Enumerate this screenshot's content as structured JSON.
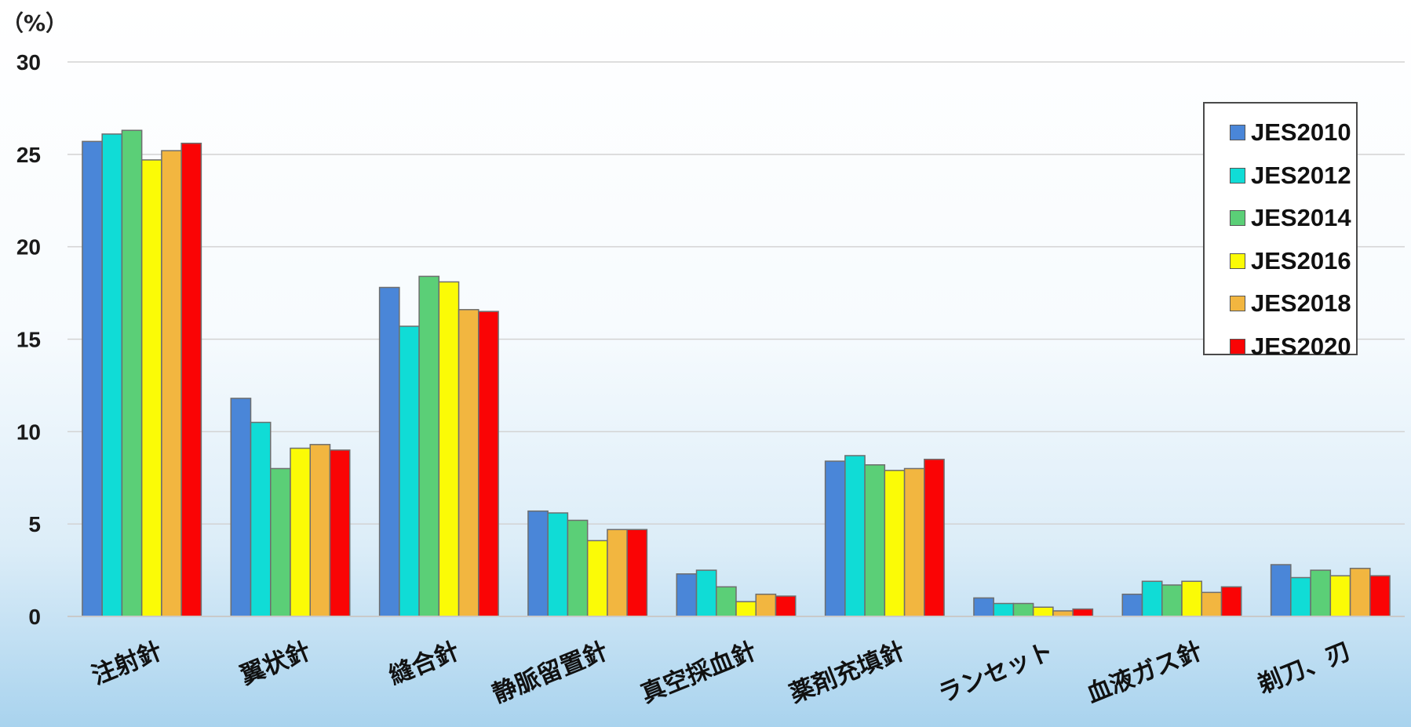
{
  "chart_data": {
    "type": "bar",
    "unit_label": "（%）",
    "categories": [
      "注射針",
      "翼状針",
      "縫合針",
      "静脈留置針",
      "真空採血針",
      "薬剤充填針",
      "ランセット",
      "血液ガス針",
      "剃刀、刃"
    ],
    "series": [
      {
        "name": "JES2010",
        "color": "#4a86d8",
        "values": [
          25.7,
          11.8,
          17.8,
          5.7,
          2.3,
          8.4,
          1.0,
          1.2,
          2.8
        ]
      },
      {
        "name": "JES2012",
        "color": "#10dcd6",
        "values": [
          26.1,
          10.5,
          15.7,
          5.6,
          2.5,
          8.7,
          0.7,
          1.9,
          2.1
        ]
      },
      {
        "name": "JES2014",
        "color": "#5bcf77",
        "values": [
          26.3,
          8.0,
          18.4,
          5.2,
          1.6,
          8.2,
          0.7,
          1.7,
          2.5
        ]
      },
      {
        "name": "JES2016",
        "color": "#fbfb06",
        "values": [
          24.7,
          9.1,
          18.1,
          4.1,
          0.8,
          7.9,
          0.5,
          1.9,
          2.2
        ]
      },
      {
        "name": "JES2018",
        "color": "#f2b640",
        "values": [
          25.2,
          9.3,
          16.6,
          4.7,
          1.2,
          8.0,
          0.3,
          1.3,
          2.6
        ]
      },
      {
        "name": "JES2020",
        "color": "#fa0405",
        "values": [
          25.6,
          9.0,
          16.5,
          4.7,
          1.1,
          8.5,
          0.4,
          1.6,
          2.2
        ]
      }
    ],
    "y_ticks": [
      "0",
      "5",
      "10",
      "15",
      "20",
      "25",
      "30"
    ],
    "ylim": [
      0,
      30
    ],
    "grid": true,
    "legend_position": "top-right"
  }
}
